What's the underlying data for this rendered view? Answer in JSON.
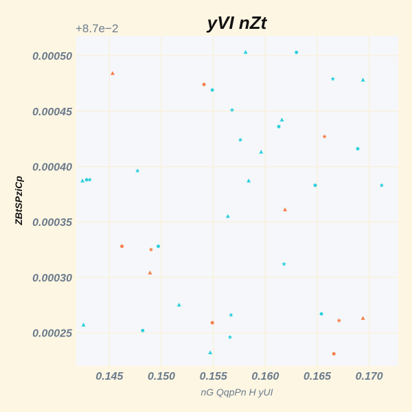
{
  "chart_data": {
    "type": "scatter",
    "title": "yVI nZt",
    "xlabel": "nG QqpPn H yUI",
    "ylabel": "ZBtSPziCp",
    "y_offset_label": "+8.7e−2",
    "xlim": [
      0.1418,
      0.1728
    ],
    "ylim": [
      0.00022,
      0.000518
    ],
    "x_ticks": [
      0.145,
      0.15,
      0.155,
      0.16,
      0.165,
      0.17
    ],
    "x_tick_labels": [
      "0.145",
      "0.150",
      "0.155",
      "0.160",
      "0.165",
      "0.170"
    ],
    "y_ticks": [
      0.00025,
      0.0003,
      0.00035,
      0.0004,
      0.00045,
      0.0005
    ],
    "y_tick_labels": [
      "0.00025",
      "0.00030",
      "0.00035",
      "0.00040",
      "0.00045",
      "0.00050"
    ],
    "grid": true,
    "series": [
      {
        "color": "#2ed0dc",
        "points": [
          [
            0.1581,
            0.000503
          ],
          [
            0.163,
            0.000503
          ],
          [
            0.1665,
            0.000479
          ],
          [
            0.1694,
            0.000478
          ],
          [
            0.1549,
            0.000469
          ],
          [
            0.1568,
            0.000451
          ],
          [
            0.1616,
            0.000442
          ],
          [
            0.1613,
            0.000436
          ],
          [
            0.1576,
            0.000424
          ],
          [
            0.1596,
            0.000413
          ],
          [
            0.1689,
            0.000416
          ],
          [
            0.1477,
            0.000396
          ],
          [
            0.1424,
            0.000387
          ],
          [
            0.1428,
            0.000388
          ],
          [
            0.1431,
            0.000388
          ],
          [
            0.1584,
            0.000387
          ],
          [
            0.1648,
            0.000383
          ],
          [
            0.1712,
            0.000383
          ],
          [
            0.1564,
            0.000355
          ],
          [
            0.1497,
            0.000328
          ],
          [
            0.1618,
            0.000312
          ],
          [
            0.1517,
            0.000275
          ],
          [
            0.1654,
            0.000267
          ],
          [
            0.1567,
            0.000266
          ],
          [
            0.1425,
            0.000257
          ],
          [
            0.1482,
            0.000252
          ],
          [
            0.1566,
            0.000246
          ],
          [
            0.1547,
            0.000232
          ]
        ]
      },
      {
        "color": "#f4804a",
        "points": [
          [
            0.1453,
            0.000484
          ],
          [
            0.1541,
            0.000474
          ],
          [
            0.1657,
            0.000427
          ],
          [
            0.1619,
            0.000361
          ],
          [
            0.1462,
            0.000328
          ],
          [
            0.149,
            0.000325
          ],
          [
            0.1489,
            0.000304
          ],
          [
            0.1549,
            0.000259
          ],
          [
            0.1671,
            0.000261
          ],
          [
            0.1694,
            0.000263
          ],
          [
            0.1666,
            0.000231
          ]
        ]
      }
    ]
  }
}
